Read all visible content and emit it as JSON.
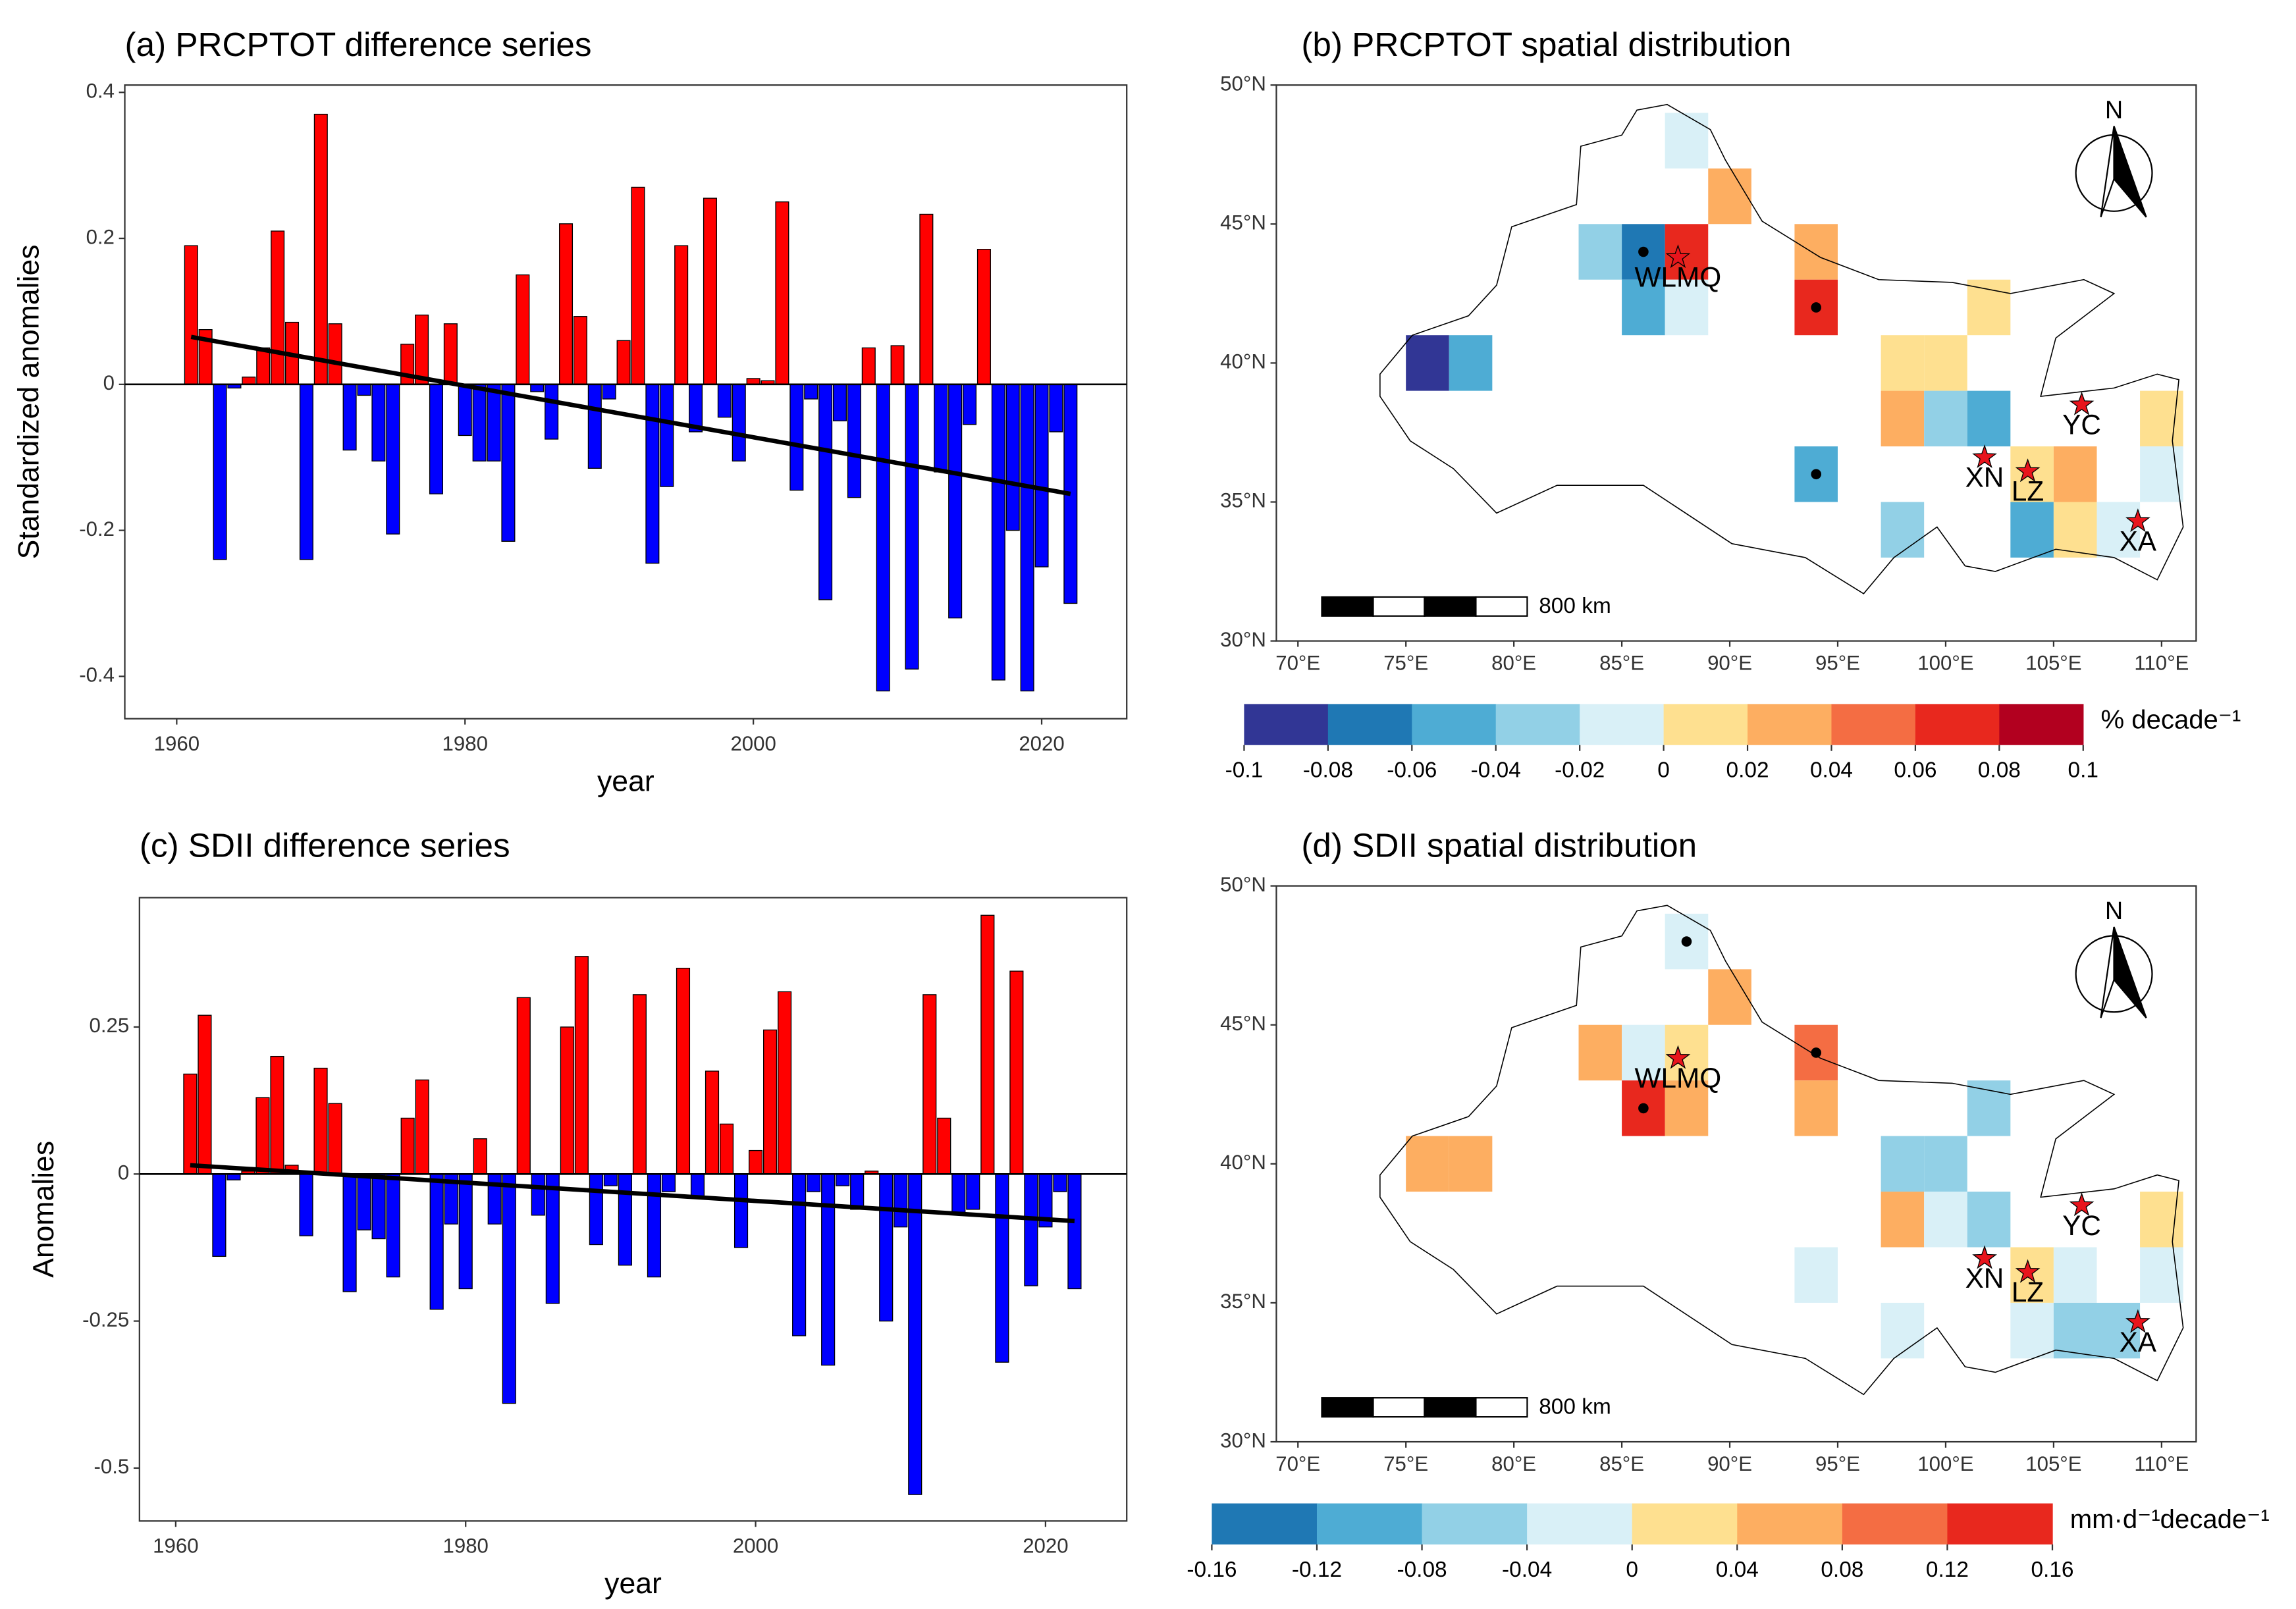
{
  "chart_data": [
    {
      "type": "bar",
      "title": "(a) PRCPTOT difference series",
      "xlabel": "year",
      "ylabel": "Standardized anomalies",
      "x": [
        1961,
        1962,
        1963,
        1964,
        1965,
        1966,
        1967,
        1968,
        1969,
        1970,
        1971,
        1972,
        1973,
        1974,
        1975,
        1976,
        1977,
        1978,
        1979,
        1980,
        1981,
        1982,
        1983,
        1984,
        1985,
        1986,
        1987,
        1988,
        1989,
        1990,
        1991,
        1992,
        1993,
        1994,
        1995,
        1996,
        1997,
        1998,
        1999,
        2000,
        2001,
        2002,
        2003,
        2004,
        2005,
        2006,
        2007,
        2008,
        2009,
        2010,
        2011,
        2012,
        2013,
        2014,
        2015,
        2016,
        2017,
        2018,
        2019,
        2020,
        2021,
        2022
      ],
      "values": [
        0.19,
        0.075,
        -0.24,
        -0.005,
        0.01,
        0.05,
        0.21,
        0.085,
        -0.24,
        0.37,
        0.083,
        -0.09,
        -0.015,
        -0.105,
        -0.205,
        0.055,
        0.095,
        -0.15,
        0.083,
        -0.07,
        -0.105,
        -0.105,
        -0.215,
        0.15,
        -0.01,
        -0.075,
        0.22,
        0.093,
        -0.115,
        -0.02,
        0.06,
        0.27,
        -0.245,
        -0.14,
        0.19,
        -0.065,
        0.255,
        -0.045,
        -0.105,
        0.008,
        0.005,
        0.25,
        -0.145,
        -0.02,
        -0.295,
        -0.05,
        -0.155,
        0.05,
        -0.42,
        0.053,
        -0.39,
        0.233,
        -0.12,
        -0.32,
        -0.055,
        0.185,
        -0.405,
        -0.2,
        -0.42,
        -0.25,
        -0.065,
        -0.3
      ],
      "positive_color": "#ff0000",
      "negative_color": "#0000ff",
      "trend": {
        "x": [
          1961,
          2022
        ],
        "values": [
          0.065,
          -0.15
        ]
      },
      "xlim": [
        1956.4,
        2025.9
      ],
      "xticks": [
        1960,
        1980,
        2000,
        2020
      ],
      "ylim": [
        -0.458,
        0.41
      ],
      "yticks": [
        -0.4,
        -0.2,
        0,
        0.2,
        0.4
      ]
    },
    {
      "type": "map",
      "title": "(b) PRCPTOT spatial distribution",
      "xlim": [
        69,
        111.6
      ],
      "ylim": [
        30,
        50
      ],
      "xticks": [
        {
          "value": 70,
          "label": "70°E"
        },
        {
          "value": 75,
          "label": "75°E"
        },
        {
          "value": 80,
          "label": "80°E"
        },
        {
          "value": 85,
          "label": "85°E"
        },
        {
          "value": 90,
          "label": "90°E"
        },
        {
          "value": 95,
          "label": "95°E"
        },
        {
          "value": 100,
          "label": "100°E"
        },
        {
          "value": 105,
          "label": "105°E"
        },
        {
          "value": 110,
          "label": "110°E"
        }
      ],
      "yticks": [
        {
          "value": 30,
          "label": "30°N"
        },
        {
          "value": 35,
          "label": "35°N"
        },
        {
          "value": 40,
          "label": "40°N"
        },
        {
          "value": 45,
          "label": "45°N"
        },
        {
          "value": 50,
          "label": "50°N"
        }
      ],
      "cell_size": 2,
      "cells": [
        [
          76,
          40,
          -0.09
        ],
        [
          78,
          40,
          -0.05
        ],
        [
          88,
          48,
          -0.01
        ],
        [
          90,
          46,
          0.03
        ],
        [
          84,
          44,
          -0.03
        ],
        [
          86,
          44,
          -0.07
        ],
        [
          88,
          44,
          0.07
        ],
        [
          86,
          42,
          -0.05
        ],
        [
          88,
          42,
          -0.01
        ],
        [
          94,
          44,
          0.03
        ],
        [
          94,
          42,
          0.07
        ],
        [
          102,
          42,
          0.01
        ],
        [
          98,
          40,
          0.01
        ],
        [
          100,
          40,
          0.01
        ],
        [
          98,
          38,
          0.03
        ],
        [
          100,
          38,
          -0.03
        ],
        [
          102,
          38,
          -0.05
        ],
        [
          110,
          38,
          0.01
        ],
        [
          94,
          36,
          -0.05
        ],
        [
          104,
          36,
          0.01
        ],
        [
          106,
          36,
          0.03
        ],
        [
          110,
          36,
          -0.01
        ],
        [
          98,
          34,
          -0.03
        ],
        [
          104,
          34,
          -0.05
        ],
        [
          106,
          34,
          0.01
        ],
        [
          108,
          34,
          -0.01
        ]
      ],
      "dots": [
        [
          86,
          44
        ],
        [
          94,
          42
        ],
        [
          94,
          36
        ]
      ],
      "stations": [
        {
          "name": "WLMQ",
          "lon": 87.6,
          "lat": 43.8
        },
        {
          "name": "YC",
          "lon": 106.3,
          "lat": 38.5
        },
        {
          "name": "XN",
          "lon": 101.8,
          "lat": 36.6
        },
        {
          "name": "LZ",
          "lon": 103.8,
          "lat": 36.1
        },
        {
          "name": "XA",
          "lon": 108.9,
          "lat": 34.3
        }
      ],
      "colorbar": {
        "ticks": [
          -0.1,
          -0.08,
          -0.06,
          -0.04,
          -0.02,
          0,
          0.02,
          0.04,
          0.06,
          0.08,
          0.1
        ],
        "colors": [
          "#313695",
          "#1f78b4",
          "#4eacd4",
          "#92d0e6",
          "#d9f0f7",
          "#fee090",
          "#fdae61",
          "#f46d43",
          "#e8281e",
          "#b2001f"
        ],
        "label": "% decade⁻¹"
      },
      "scale_label": "800 km",
      "north_label": "N"
    },
    {
      "type": "bar",
      "title": "(c) SDII difference series",
      "xlabel": "year",
      "ylabel": "Anomalies",
      "x": [
        1961,
        1962,
        1963,
        1964,
        1965,
        1966,
        1967,
        1968,
        1969,
        1970,
        1971,
        1972,
        1973,
        1974,
        1975,
        1976,
        1977,
        1978,
        1979,
        1980,
        1981,
        1982,
        1983,
        1984,
        1985,
        1986,
        1987,
        1988,
        1989,
        1990,
        1991,
        1992,
        1993,
        1994,
        1995,
        1996,
        1997,
        1998,
        1999,
        2000,
        2001,
        2002,
        2003,
        2004,
        2005,
        2006,
        2007,
        2008,
        2009,
        2010,
        2011,
        2012,
        2013,
        2014,
        2015,
        2016,
        2017,
        2018,
        2019,
        2020,
        2021,
        2022
      ],
      "values": [
        0.17,
        0.27,
        -0.14,
        -0.01,
        0.005,
        0.13,
        0.2,
        0.015,
        -0.105,
        0.18,
        0.12,
        -0.2,
        -0.095,
        -0.11,
        -0.175,
        0.095,
        0.16,
        -0.23,
        -0.085,
        -0.195,
        0.06,
        -0.085,
        -0.39,
        0.3,
        -0.07,
        -0.22,
        0.25,
        0.37,
        -0.12,
        -0.02,
        -0.155,
        0.305,
        -0.175,
        -0.03,
        0.35,
        -0.04,
        0.175,
        0.085,
        -0.125,
        0.04,
        0.245,
        0.31,
        -0.275,
        -0.03,
        -0.325,
        -0.02,
        -0.06,
        0.005,
        -0.25,
        -0.09,
        -0.545,
        0.305,
        0.095,
        -0.065,
        -0.06,
        0.44,
        -0.32,
        0.345,
        -0.19,
        -0.09,
        -0.03,
        -0.195
      ],
      "positive_color": "#ff0000",
      "negative_color": "#0000ff",
      "trend": {
        "x": [
          1961,
          2022
        ],
        "values": [
          0.015,
          -0.08
        ]
      },
      "xlim": [
        1957.5,
        2025.6
      ],
      "xticks": [
        1960,
        1980,
        2000,
        2020
      ],
      "ylim": [
        -0.59,
        0.47
      ],
      "yticks": [
        -0.5,
        -0.25,
        0,
        0.25
      ]
    },
    {
      "type": "map",
      "title": "(d) SDII spatial distribution",
      "xlim": [
        69,
        111.6
      ],
      "ylim": [
        30,
        50
      ],
      "xticks": [
        {
          "value": 70,
          "label": "70°E"
        },
        {
          "value": 75,
          "label": "75°E"
        },
        {
          "value": 80,
          "label": "80°E"
        },
        {
          "value": 85,
          "label": "85°E"
        },
        {
          "value": 90,
          "label": "90°E"
        },
        {
          "value": 95,
          "label": "95°E"
        },
        {
          "value": 100,
          "label": "100°E"
        },
        {
          "value": 105,
          "label": "105°E"
        },
        {
          "value": 110,
          "label": "110°E"
        }
      ],
      "yticks": [
        {
          "value": 30,
          "label": "30°N"
        },
        {
          "value": 35,
          "label": "35°N"
        },
        {
          "value": 40,
          "label": "40°N"
        },
        {
          "value": 45,
          "label": "45°N"
        },
        {
          "value": 50,
          "label": "50°N"
        }
      ],
      "cell_size": 2,
      "cells": [
        [
          88,
          48,
          -0.02
        ],
        [
          90,
          46,
          0.06
        ],
        [
          84,
          44,
          0.06
        ],
        [
          86,
          44,
          -0.02
        ],
        [
          88,
          44,
          0.02
        ],
        [
          86,
          42,
          0.14
        ],
        [
          88,
          42,
          0.06
        ],
        [
          94,
          44,
          0.1
        ],
        [
          94,
          42,
          0.06
        ],
        [
          76,
          40,
          0.06
        ],
        [
          78,
          40,
          0.06
        ],
        [
          102,
          42,
          -0.06
        ],
        [
          98,
          40,
          -0.06
        ],
        [
          100,
          40,
          -0.06
        ],
        [
          98,
          38,
          0.06
        ],
        [
          100,
          38,
          -0.02
        ],
        [
          102,
          38,
          -0.06
        ],
        [
          110,
          38,
          0.02
        ],
        [
          94,
          36,
          -0.02
        ],
        [
          104,
          36,
          0.02
        ],
        [
          106,
          36,
          -0.02
        ],
        [
          110,
          36,
          -0.02
        ],
        [
          98,
          34,
          -0.02
        ],
        [
          104,
          34,
          -0.02
        ],
        [
          106,
          34,
          -0.06
        ],
        [
          108,
          34,
          -0.06
        ]
      ],
      "dots": [
        [
          88,
          48
        ],
        [
          86,
          42
        ],
        [
          94,
          44
        ]
      ],
      "stations": [
        {
          "name": "WLMQ",
          "lon": 87.6,
          "lat": 43.8
        },
        {
          "name": "YC",
          "lon": 106.3,
          "lat": 38.5
        },
        {
          "name": "XN",
          "lon": 101.8,
          "lat": 36.6
        },
        {
          "name": "LZ",
          "lon": 103.8,
          "lat": 36.1
        },
        {
          "name": "XA",
          "lon": 108.9,
          "lat": 34.3
        }
      ],
      "colorbar": {
        "ticks": [
          -0.16,
          -0.12,
          -0.08,
          -0.04,
          0,
          0.04,
          0.08,
          0.12,
          0.16
        ],
        "colors": [
          "#1f78b4",
          "#4eacd4",
          "#92d0e6",
          "#d9f0f7",
          "#fee090",
          "#fdae61",
          "#f46d43",
          "#e8281e"
        ],
        "label": "mm·d⁻¹decade⁻¹"
      },
      "scale_label": "800 km",
      "north_label": "N"
    }
  ]
}
